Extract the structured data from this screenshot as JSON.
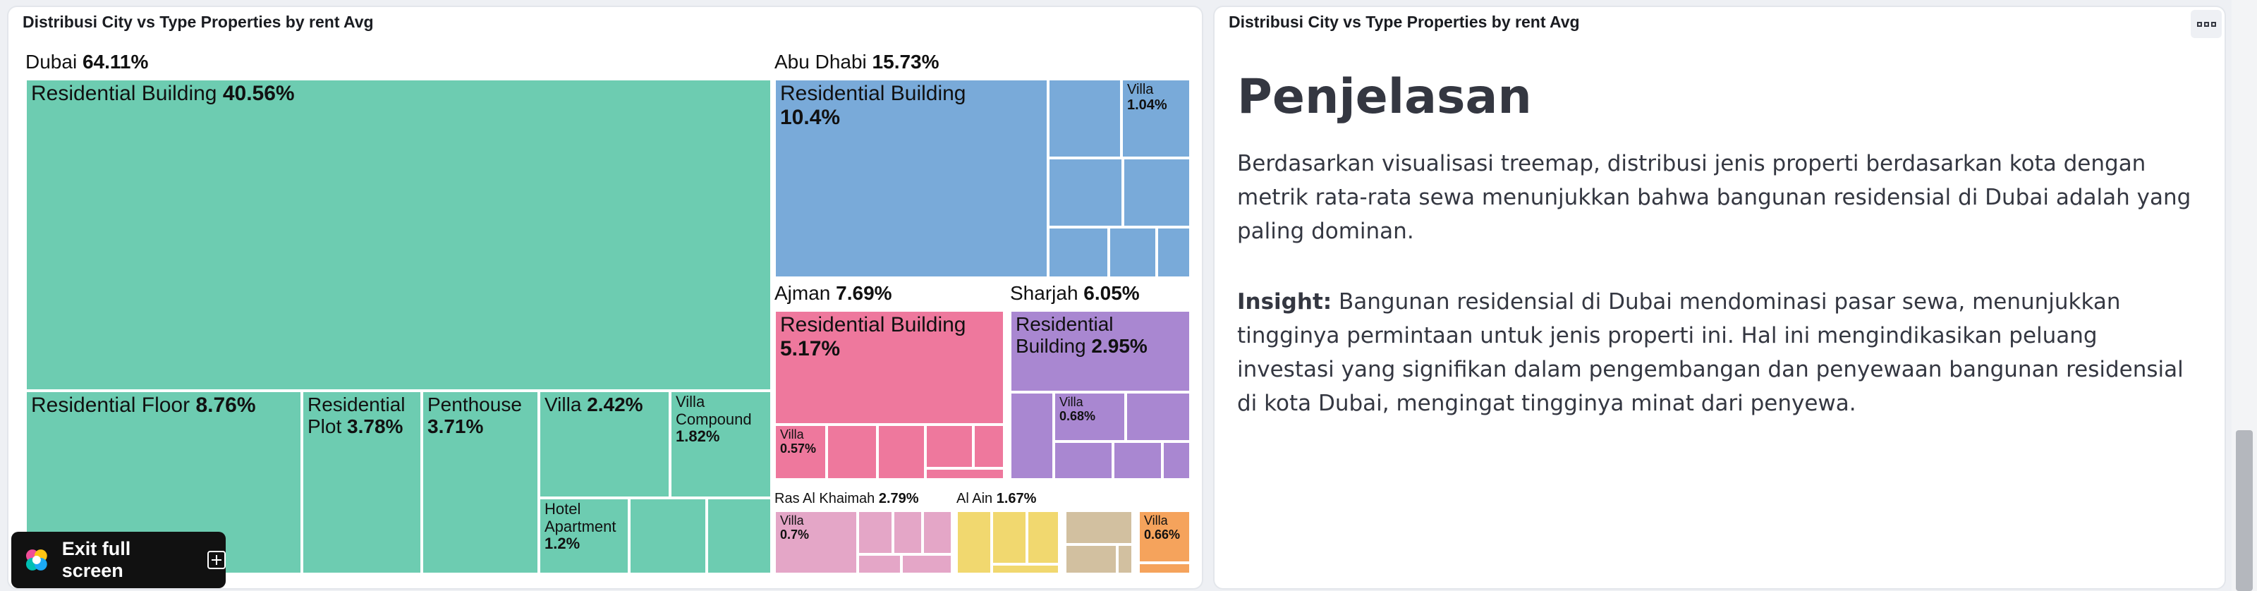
{
  "left_panel": {
    "title": "Distribusi City vs Type Properties by rent Avg"
  },
  "right_panel": {
    "title": "Distribusi City vs Type Properties by rent Avg",
    "heading": "Penjelasan",
    "paragraph": "Berdasarkan visualisasi treemap, distribusi jenis properti berdasarkan kota dengan metrik rata-rata sewa menunjukkan bahwa bangunan residensial di Dubai adalah yang paling dominan.",
    "insight_label": "Insight:",
    "insight_text": " Bangunan residensial di Dubai mendominasi pasar sewa, menunjukkan tingginya permintaan untuk jenis properti ini. Hal ini mengindikasikan peluang investasi yang signifikan dalam pengembangan dan penyewaan bangunan residensial di kota Dubai, mengingat tingginya minat dari penyewa."
  },
  "exit_button": {
    "label": "Exit full screen"
  },
  "chart_data": {
    "type": "treemap",
    "title": "Distribusi City vs Type Properties by rent Avg",
    "metric": "rent Avg",
    "colors": {
      "Dubai": "#6dccb1",
      "Abu Dhabi": "#79aad9",
      "Ajman": "#ee789d",
      "Sharjah": "#a987d1",
      "Ras Al Khaimah": "#e4a6c7",
      "Al Ain": "#f1d86f",
      "Other1": "#d2c0a0",
      "Other2": "#f5a35c"
    },
    "groups": [
      {
        "name": "Dubai",
        "pct": "64.11%",
        "children": [
          {
            "name": "Residential Building",
            "pct": "40.56%"
          },
          {
            "name": "Residential Floor",
            "pct": "8.76%"
          },
          {
            "name": "Residential Plot",
            "pct": "3.78%"
          },
          {
            "name": "Penthouse",
            "pct": "3.71%"
          },
          {
            "name": "Villa",
            "pct": "2.42%"
          },
          {
            "name": "Villa Compound",
            "pct": "1.82%"
          },
          {
            "name": "Hotel Apartment",
            "pct": "1.2%"
          }
        ]
      },
      {
        "name": "Abu Dhabi",
        "pct": "15.73%",
        "children": [
          {
            "name": "Residential Building",
            "pct": "10.4%"
          },
          {
            "name": "Villa",
            "pct": "1.04%"
          }
        ]
      },
      {
        "name": "Ajman",
        "pct": "7.69%",
        "children": [
          {
            "name": "Residential Building",
            "pct": "5.17%"
          },
          {
            "name": "Villa",
            "pct": "0.57%"
          }
        ]
      },
      {
        "name": "Sharjah",
        "pct": "6.05%",
        "children": [
          {
            "name": "Residential Building",
            "pct": "2.95%"
          },
          {
            "name": "Villa",
            "pct": "0.68%"
          }
        ]
      },
      {
        "name": "Ras Al Khaimah",
        "pct": "2.79%",
        "children": [
          {
            "name": "Villa",
            "pct": "0.7%"
          }
        ]
      },
      {
        "name": "Al Ain",
        "pct": "1.67%",
        "children": []
      },
      {
        "name": "",
        "pct": "",
        "children": [
          {
            "name": "Villa",
            "pct": "0.66%"
          }
        ]
      }
    ]
  }
}
